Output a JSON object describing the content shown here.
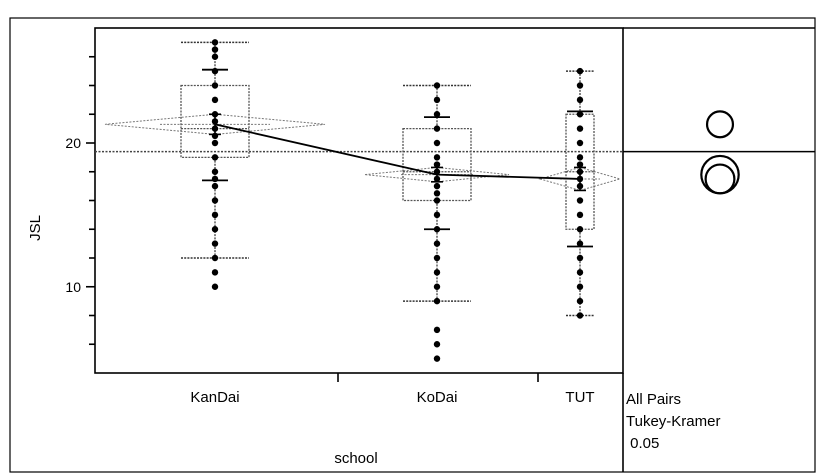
{
  "chart_data": {
    "type": "scatter",
    "subtype": "oneway-analysis",
    "title": "",
    "xlabel": "school",
    "ylabel": "JSL",
    "ylim": [
      4,
      28
    ],
    "y_ticks": [
      10,
      20
    ],
    "grand_mean": 19.4,
    "categories": [
      "KanDai",
      "KoDai",
      "TUT"
    ],
    "groups": [
      {
        "name": "KanDai",
        "points": [
          10,
          11,
          12,
          13,
          14,
          15,
          16,
          17,
          17.5,
          18,
          19,
          20,
          20.5,
          21,
          21.5,
          22,
          23,
          24,
          25,
          26,
          26.5,
          27
        ],
        "box": {
          "q1": 19,
          "median": 21,
          "q3": 24,
          "whisker_low": 12,
          "whisker_high": 27
        },
        "mean": 21.3,
        "mean_ci": [
          20.6,
          22.0
        ],
        "std_lines": [
          17.4,
          25.1
        ]
      },
      {
        "name": "KoDai",
        "points": [
          5,
          6,
          7,
          9,
          10,
          11,
          12,
          13,
          14,
          15,
          16,
          16.5,
          17,
          17.5,
          18,
          18.5,
          19,
          20,
          21,
          22,
          23,
          24
        ],
        "box": {
          "q1": 16,
          "median": 18,
          "q3": 21,
          "whisker_low": 9,
          "whisker_high": 24
        },
        "mean": 17.8,
        "mean_ci": [
          17.3,
          18.3
        ],
        "std_lines": [
          14.0,
          21.8
        ]
      },
      {
        "name": "TUT",
        "points": [
          8,
          9,
          10,
          11,
          12,
          13,
          14,
          15,
          16,
          17,
          17.5,
          18,
          18.5,
          19,
          20,
          21,
          22,
          23,
          24,
          25
        ],
        "box": {
          "q1": 14,
          "median": 18,
          "q3": 22,
          "whisker_low": 8,
          "whisker_high": 25
        },
        "mean": 17.5,
        "mean_ci": [
          16.7,
          18.3
        ],
        "std_lines": [
          12.8,
          22.2
        ]
      }
    ],
    "comparison_circles": {
      "title_lines": [
        "All Pairs",
        "Tukey-Kramer",
        " 0.05"
      ],
      "circles": [
        {
          "group": "KanDai",
          "center": 21.3,
          "radius": 0.9
        },
        {
          "group": "KoDai",
          "center": 17.8,
          "radius": 1.3
        },
        {
          "group": "TUT",
          "center": 17.5,
          "radius": 1.0
        }
      ]
    }
  }
}
